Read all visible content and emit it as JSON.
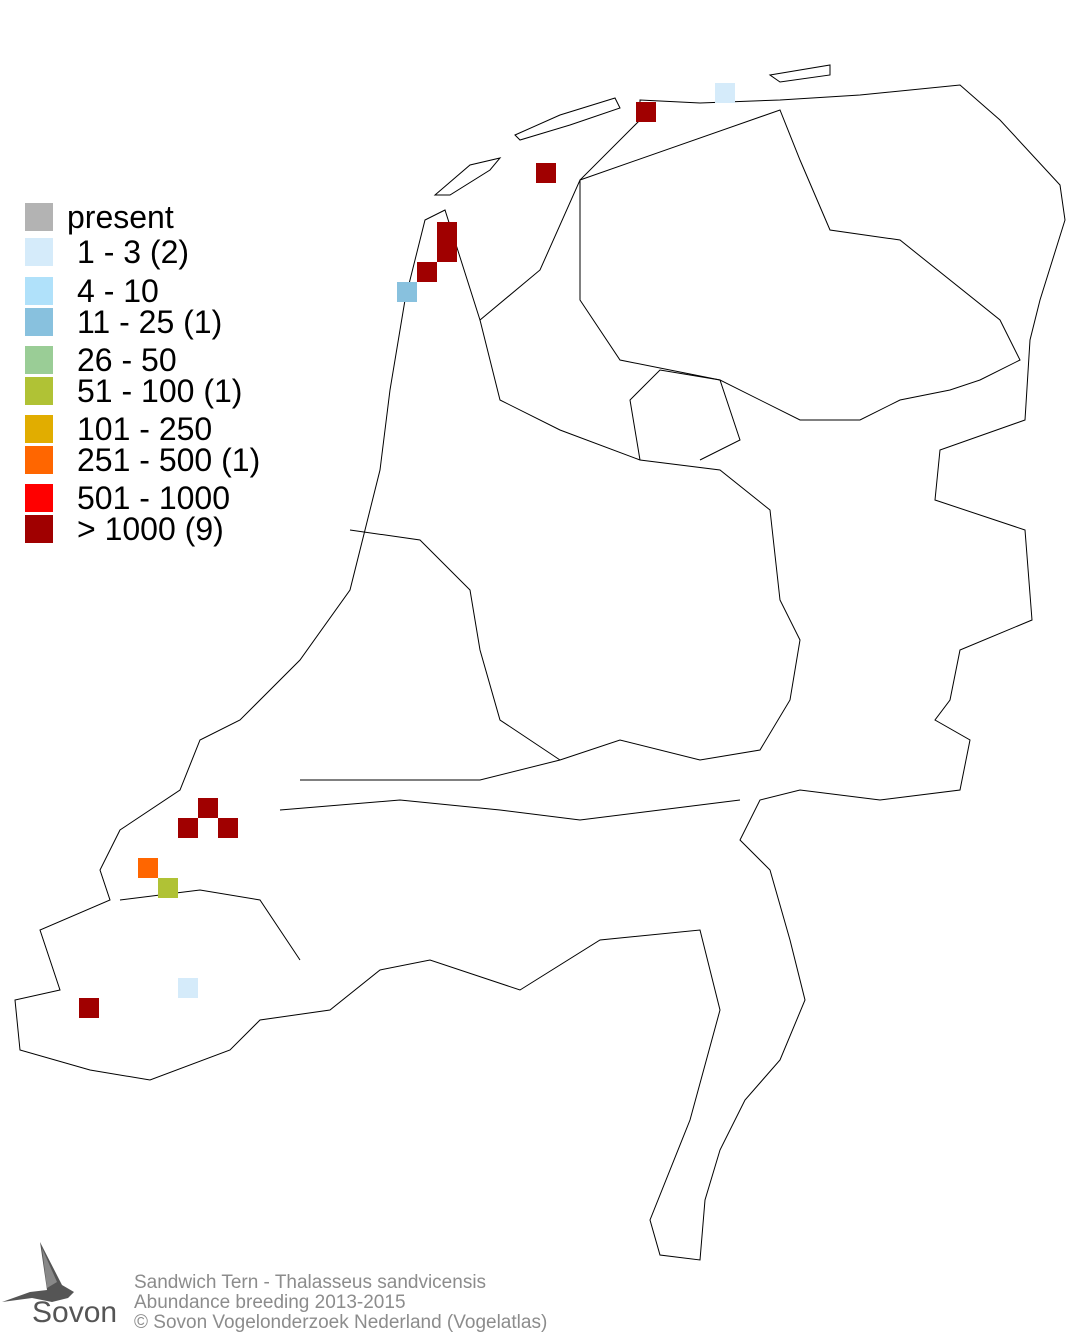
{
  "legend": [
    {
      "label": "present",
      "color": "#b3b3b3"
    },
    {
      "label": "1 - 3 (2)",
      "color": "#d5ebfa"
    },
    {
      "label": "4 - 10",
      "color": "#b0e1fa"
    },
    {
      "label": "11 - 25 (1)",
      "color": "#88c1de"
    },
    {
      "label": "26 - 50",
      "color": "#9acd96"
    },
    {
      "label": "51 - 100 (1)",
      "color": "#b0c235"
    },
    {
      "label": "101 - 250",
      "color": "#e1ad00"
    },
    {
      "label": "251 - 500 (1)",
      "color": "#ff6600"
    },
    {
      "label": "501 - 1000",
      "color": "#ff0000"
    },
    {
      "label": "> 1000 (9)",
      "color": "#a00000"
    }
  ],
  "cells": [
    {
      "class": 9
    },
    {
      "class": 1
    },
    {
      "class": 9
    },
    {
      "class": 9
    },
    {
      "class": 9
    },
    {
      "class": 9
    },
    {
      "class": 3
    },
    {
      "class": 9
    },
    {
      "class": 9
    },
    {
      "class": 9
    },
    {
      "class": 7
    },
    {
      "class": 5
    },
    {
      "class": 1
    },
    {
      "class": 9
    }
  ],
  "credits": {
    "species": "Sandwich Tern - Thalasseus sandvicensis",
    "subject": "Abundance breeding 2013-2015",
    "copyright": "© Sovon Vogelonderzoek Nederland (Vogelatlas)"
  },
  "logo": {
    "text": "Sovon"
  }
}
